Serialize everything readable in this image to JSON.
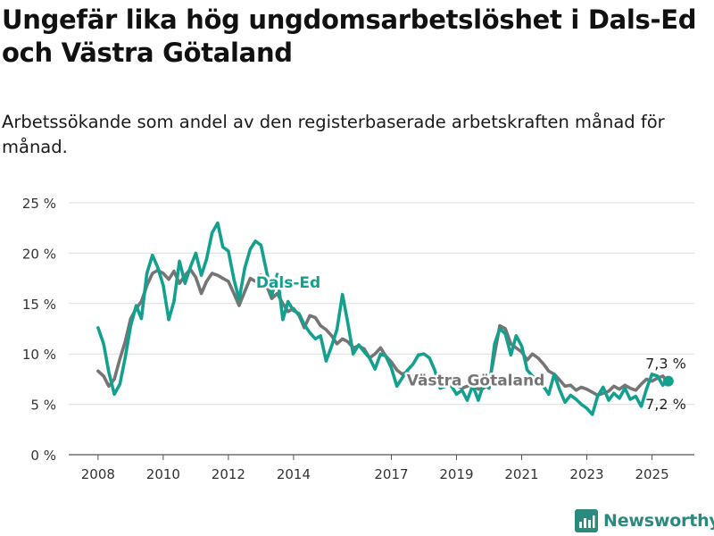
{
  "title": "Ungefär lika hög ungdomsarbetslöshet i Dals-Ed och Västra Götaland",
  "subtitle": "Arbetssökande som andel av den registerbaserade arbetskraften månad för månad.",
  "brand": {
    "name": "Newsworthy",
    "icon": "bar-chart-logo-icon",
    "color": "#2a8a7e"
  },
  "chart_data": {
    "type": "line",
    "y_ticks": [
      {
        "value": 0,
        "label": "0 %"
      },
      {
        "value": 5,
        "label": "5 %"
      },
      {
        "value": 10,
        "label": "10 %"
      },
      {
        "value": 15,
        "label": "15 %"
      },
      {
        "value": 20,
        "label": "20 %"
      },
      {
        "value": 25,
        "label": "25 %"
      }
    ],
    "x_ticks": [
      {
        "value": 2008,
        "label": "2008"
      },
      {
        "value": 2010,
        "label": "2010"
      },
      {
        "value": 2012,
        "label": "2012"
      },
      {
        "value": 2014,
        "label": "2014"
      },
      {
        "value": 2017,
        "label": "2017"
      },
      {
        "value": 2019,
        "label": "2019"
      },
      {
        "value": 2021,
        "label": "2021"
      },
      {
        "value": 2023,
        "label": "2023"
      },
      {
        "value": 2025,
        "label": "2025"
      }
    ],
    "ylim": [
      0,
      25
    ],
    "xlim": [
      2007.1,
      2026.3
    ],
    "grid": true,
    "series": [
      {
        "name": "Västra Götaland",
        "color": "#757575",
        "end_label": "7,2 %",
        "x": [
          2008.0,
          2008.17,
          2008.33,
          2008.5,
          2008.67,
          2008.83,
          2009.0,
          2009.17,
          2009.33,
          2009.5,
          2009.67,
          2009.83,
          2010.0,
          2010.17,
          2010.33,
          2010.5,
          2010.67,
          2010.83,
          2011.0,
          2011.17,
          2011.33,
          2011.5,
          2011.67,
          2011.83,
          2012.0,
          2012.17,
          2012.33,
          2012.5,
          2012.67,
          2012.83,
          2013.0,
          2013.17,
          2013.33,
          2013.5,
          2013.67,
          2013.83,
          2014.0,
          2014.17,
          2014.33,
          2014.5,
          2014.67,
          2014.83,
          2015.0,
          2015.17,
          2015.33,
          2015.5,
          2015.67,
          2015.83,
          2016.0,
          2016.17,
          2016.33,
          2016.5,
          2016.67,
          2016.83,
          2017.0,
          2017.17,
          2017.33,
          2017.5,
          2017.67,
          2017.83,
          2018.0,
          2018.17,
          2018.33,
          2018.5,
          2018.67,
          2018.83,
          2019.0,
          2019.17,
          2019.33,
          2019.5,
          2019.67,
          2019.83,
          2020.0,
          2020.17,
          2020.33,
          2020.5,
          2020.67,
          2020.83,
          2021.0,
          2021.17,
          2021.33,
          2021.5,
          2021.67,
          2021.83,
          2022.0,
          2022.17,
          2022.33,
          2022.5,
          2022.67,
          2022.83,
          2023.0,
          2023.17,
          2023.33,
          2023.5,
          2023.67,
          2023.83,
          2024.0,
          2024.17,
          2024.33,
          2024.5,
          2024.67,
          2024.83,
          2025.0,
          2025.17,
          2025.33,
          2025.5
        ],
        "y": [
          8.3,
          7.8,
          6.8,
          7.5,
          9.5,
          11.2,
          13.5,
          14.5,
          15.2,
          16.8,
          18.0,
          18.3,
          18.0,
          17.4,
          18.2,
          17.0,
          17.8,
          18.4,
          17.6,
          16.0,
          17.2,
          18.0,
          17.8,
          17.5,
          17.2,
          16.0,
          14.8,
          16.2,
          17.5,
          17.2,
          17.8,
          16.8,
          15.5,
          16.0,
          15.0,
          14.2,
          14.5,
          13.8,
          12.6,
          13.8,
          13.6,
          12.8,
          12.4,
          11.8,
          11.0,
          11.5,
          11.2,
          10.6,
          10.8,
          10.5,
          9.6,
          10.0,
          10.6,
          9.8,
          9.2,
          8.4,
          8.0,
          8.2,
          7.6,
          7.4,
          7.8,
          7.4,
          7.2,
          6.8,
          7.5,
          7.0,
          6.9,
          6.6,
          6.8,
          7.0,
          6.5,
          6.6,
          7.1,
          10.0,
          12.8,
          12.5,
          11.0,
          10.6,
          10.2,
          9.4,
          10.0,
          9.6,
          9.0,
          8.3,
          8.0,
          7.4,
          6.8,
          6.9,
          6.4,
          6.7,
          6.5,
          6.2,
          5.9,
          6.1,
          6.3,
          6.8,
          6.5,
          6.9,
          6.6,
          6.4,
          7.0,
          7.5,
          7.3,
          7.6,
          7.8,
          7.2
        ]
      },
      {
        "name": "Dals-Ed",
        "color": "#13a08f",
        "end_label": "7,3 %",
        "x": [
          2008.0,
          2008.17,
          2008.33,
          2008.5,
          2008.67,
          2008.83,
          2009.0,
          2009.17,
          2009.33,
          2009.5,
          2009.67,
          2009.83,
          2010.0,
          2010.17,
          2010.33,
          2010.5,
          2010.67,
          2010.83,
          2011.0,
          2011.17,
          2011.33,
          2011.5,
          2011.67,
          2011.83,
          2012.0,
          2012.17,
          2012.33,
          2012.5,
          2012.67,
          2012.83,
          2013.0,
          2013.17,
          2013.33,
          2013.5,
          2013.67,
          2013.83,
          2014.0,
          2014.17,
          2014.33,
          2014.5,
          2014.67,
          2014.83,
          2015.0,
          2015.17,
          2015.33,
          2015.5,
          2015.67,
          2015.83,
          2016.0,
          2016.17,
          2016.33,
          2016.5,
          2016.67,
          2016.83,
          2017.0,
          2017.17,
          2017.33,
          2017.5,
          2017.67,
          2017.83,
          2018.0,
          2018.17,
          2018.33,
          2018.5,
          2018.67,
          2018.83,
          2019.0,
          2019.17,
          2019.33,
          2019.5,
          2019.67,
          2019.83,
          2020.0,
          2020.17,
          2020.33,
          2020.5,
          2020.67,
          2020.83,
          2021.0,
          2021.17,
          2021.33,
          2021.5,
          2021.67,
          2021.83,
          2022.0,
          2022.17,
          2022.33,
          2022.5,
          2022.67,
          2022.83,
          2023.0,
          2023.17,
          2023.33,
          2023.5,
          2023.67,
          2023.83,
          2024.0,
          2024.17,
          2024.33,
          2024.5,
          2024.67,
          2024.83,
          2025.0,
          2025.17,
          2025.33,
          2025.5
        ],
        "y": [
          12.6,
          11.0,
          8.2,
          6.0,
          7.0,
          9.6,
          12.8,
          14.8,
          13.5,
          18.0,
          19.8,
          18.6,
          16.8,
          13.4,
          15.2,
          19.2,
          17.0,
          18.6,
          20.0,
          17.8,
          19.4,
          22.0,
          23.0,
          20.6,
          20.2,
          17.4,
          15.4,
          18.5,
          20.4,
          21.2,
          20.8,
          18.2,
          15.8,
          17.9,
          13.4,
          15.2,
          14.3,
          14.0,
          12.9,
          12.1,
          11.5,
          11.8,
          9.3,
          10.8,
          12.4,
          15.9,
          13.0,
          10.0,
          10.9,
          10.2,
          9.6,
          8.5,
          10.0,
          9.8,
          8.6,
          6.8,
          7.6,
          8.4,
          9.0,
          9.9,
          10.0,
          9.6,
          8.4,
          6.6,
          6.8,
          6.9,
          6.0,
          6.4,
          5.4,
          6.9,
          5.4,
          7.0,
          6.6,
          11.0,
          12.5,
          12.0,
          9.9,
          11.8,
          10.8,
          8.4,
          7.8,
          7.3,
          6.8,
          6.0,
          8.0,
          6.4,
          5.2,
          5.9,
          5.5,
          5.0,
          4.6,
          4.0,
          5.8,
          6.7,
          5.4,
          6.1,
          5.6,
          6.6,
          5.5,
          5.8,
          4.8,
          6.5,
          8.0,
          7.8,
          6.9,
          7.3
        ]
      }
    ],
    "annotations": [
      {
        "text": "Dals-Ed",
        "series": "Dals-Ed"
      },
      {
        "text": "Västra Götaland",
        "series": "Västra Götaland"
      }
    ]
  }
}
